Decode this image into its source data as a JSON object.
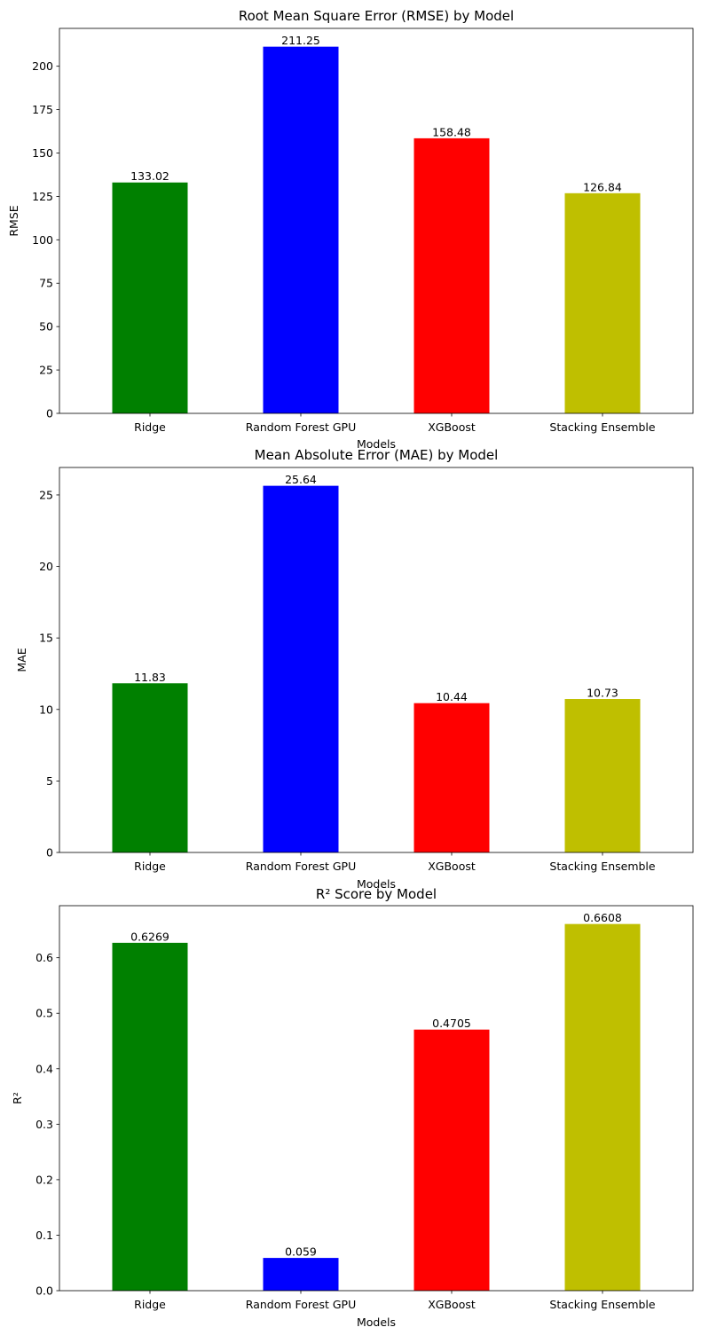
{
  "chart_data": [
    {
      "type": "bar",
      "title": "Root Mean Square Error (RMSE) by Model",
      "xlabel": "Models",
      "ylabel": "RMSE",
      "categories": [
        "Ridge",
        "Random Forest GPU",
        "XGBoost",
        "Stacking Ensemble"
      ],
      "values": [
        133.02,
        211.25,
        158.48,
        126.84
      ],
      "value_labels": [
        "133.02",
        "211.25",
        "158.48",
        "126.84"
      ],
      "colors": [
        "#008000",
        "#0000ff",
        "#ff0000",
        "#bfbf00"
      ],
      "ylim": [
        0,
        221.8
      ],
      "yticks": [
        0,
        25,
        50,
        75,
        100,
        125,
        150,
        175,
        200
      ],
      "ytick_labels": [
        "0",
        "25",
        "50",
        "75",
        "100",
        "125",
        "150",
        "175",
        "200"
      ],
      "grid": false
    },
    {
      "type": "bar",
      "title": "Mean Absolute Error (MAE) by Model",
      "xlabel": "Models",
      "ylabel": "MAE",
      "categories": [
        "Ridge",
        "Random Forest GPU",
        "XGBoost",
        "Stacking Ensemble"
      ],
      "values": [
        11.83,
        25.64,
        10.44,
        10.73
      ],
      "value_labels": [
        "11.83",
        "25.64",
        "10.44",
        "10.73"
      ],
      "colors": [
        "#008000",
        "#0000ff",
        "#ff0000",
        "#bfbf00"
      ],
      "ylim": [
        0,
        26.92
      ],
      "yticks": [
        0,
        5,
        10,
        15,
        20,
        25
      ],
      "ytick_labels": [
        "0",
        "5",
        "10",
        "15",
        "20",
        "25"
      ],
      "grid": false
    },
    {
      "type": "bar",
      "title": "R² Score by Model",
      "xlabel": "Models",
      "ylabel": "R²",
      "categories": [
        "Ridge",
        "Random Forest GPU",
        "XGBoost",
        "Stacking Ensemble"
      ],
      "values": [
        0.6269,
        0.059,
        0.4705,
        0.6608
      ],
      "value_labels": [
        "0.6269",
        "0.059",
        "0.4705",
        "0.6608"
      ],
      "colors": [
        "#008000",
        "#0000ff",
        "#ff0000",
        "#bfbf00"
      ],
      "ylim": [
        0,
        0.6938
      ],
      "yticks": [
        0,
        0.1,
        0.2,
        0.3,
        0.4,
        0.5,
        0.6
      ],
      "ytick_labels": [
        "0.0",
        "0.1",
        "0.2",
        "0.3",
        "0.4",
        "0.5",
        "0.6"
      ],
      "grid": false
    }
  ]
}
